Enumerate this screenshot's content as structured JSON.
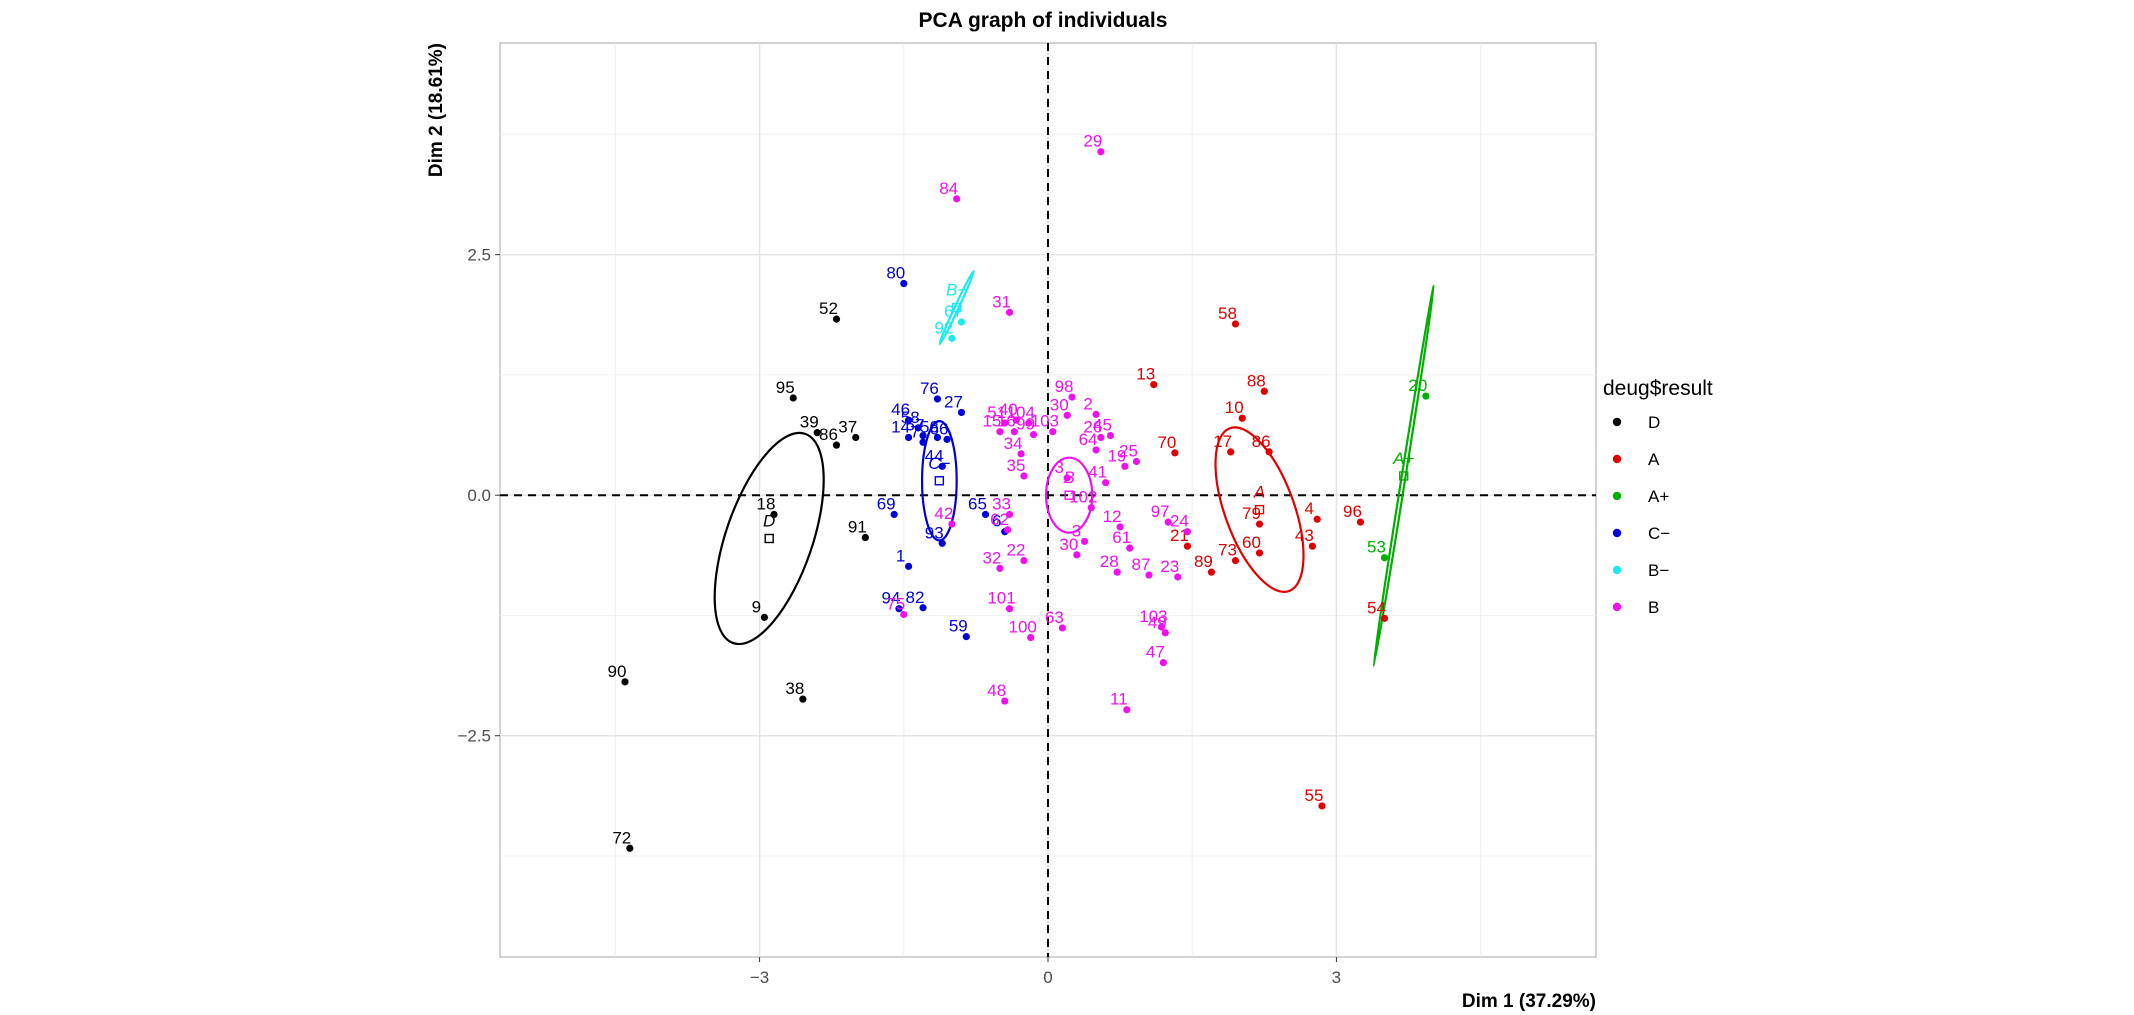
{
  "chart_data": {
    "type": "scatter",
    "title": "PCA graph of individuals",
    "xlabel": "Dim 1 (37.29%)",
    "ylabel": "Dim 2 (18.61%)",
    "xlim": [
      -5.7,
      5.7
    ],
    "ylim": [
      -4.8,
      4.7
    ],
    "xticks": [
      -3,
      0,
      3
    ],
    "yticks": [
      -2.5,
      0.0,
      2.5
    ],
    "xtick_labels": [
      "−3",
      "0",
      "3"
    ],
    "ytick_labels": [
      "−2.5",
      "0.0",
      "2.5"
    ],
    "grid": true,
    "reference_lines": "dashed at x=0 and y=0",
    "legend": {
      "title": "deug$result",
      "placement": "right",
      "entries": [
        {
          "label": "D",
          "color": "#000000"
        },
        {
          "label": "A",
          "color": "#e00000"
        },
        {
          "label": "A+",
          "color": "#00b000"
        },
        {
          "label": "C−",
          "color": "#0000d8"
        },
        {
          "label": "B−",
          "color": "#20e8f0"
        },
        {
          "label": "B",
          "color": "#ee11ee"
        }
      ]
    },
    "series": [
      {
        "name": "D",
        "color": "#000000",
        "points": [
          {
            "label": "52",
            "x": -2.2,
            "y": 1.83
          },
          {
            "label": "95",
            "x": -2.65,
            "y": 1.01
          },
          {
            "label": "39",
            "x": -2.4,
            "y": 0.65
          },
          {
            "label": "37",
            "x": -2.0,
            "y": 0.6
          },
          {
            "label": "86",
            "x": -2.2,
            "y": 0.52
          },
          {
            "label": "18",
            "x": -2.85,
            "y": -0.2
          },
          {
            "label": "91",
            "x": -1.9,
            "y": -0.44
          },
          {
            "label": "9",
            "x": -2.95,
            "y": -1.27
          },
          {
            "label": "90",
            "x": -4.4,
            "y": -1.94
          },
          {
            "label": "38",
            "x": -2.55,
            "y": -2.12
          },
          {
            "label": "72",
            "x": -4.35,
            "y": -3.67
          }
        ]
      },
      {
        "name": "A",
        "color": "#e00000",
        "points": [
          {
            "label": "58",
            "x": 1.95,
            "y": 1.78
          },
          {
            "label": "13",
            "x": 1.1,
            "y": 1.15
          },
          {
            "label": "88",
            "x": 2.25,
            "y": 1.08
          },
          {
            "label": "10",
            "x": 2.02,
            "y": 0.8
          },
          {
            "label": "70",
            "x": 1.32,
            "y": 0.44
          },
          {
            "label": "17",
            "x": 1.9,
            "y": 0.45
          },
          {
            "label": "86",
            "x": 2.3,
            "y": 0.45
          },
          {
            "label": "4",
            "x": 2.8,
            "y": -0.25
          },
          {
            "label": "96",
            "x": 3.25,
            "y": -0.28
          },
          {
            "label": "79",
            "x": 2.2,
            "y": -0.3
          },
          {
            "label": "43",
            "x": 2.75,
            "y": -0.53
          },
          {
            "label": "60",
            "x": 2.2,
            "y": -0.6
          },
          {
            "label": "21",
            "x": 1.45,
            "y": -0.53
          },
          {
            "label": "73",
            "x": 1.95,
            "y": -0.68
          },
          {
            "label": "89",
            "x": 1.7,
            "y": -0.8
          },
          {
            "label": "54",
            "x": 3.5,
            "y": -1.28
          },
          {
            "label": "55",
            "x": 2.85,
            "y": -3.23
          }
        ]
      },
      {
        "name": "A+",
        "color": "#00b000",
        "points": [
          {
            "label": "20",
            "x": 3.93,
            "y": 1.03
          },
          {
            "label": "53",
            "x": 3.5,
            "y": -0.65
          }
        ]
      },
      {
        "name": "C−",
        "color": "#0000d8",
        "points": [
          {
            "label": "80",
            "x": -1.5,
            "y": 2.2
          },
          {
            "label": "76",
            "x": -1.15,
            "y": 1.0
          },
          {
            "label": "27",
            "x": -0.9,
            "y": 0.86
          },
          {
            "label": "46",
            "x": -1.45,
            "y": 0.78
          },
          {
            "label": "58",
            "x": -1.35,
            "y": 0.7
          },
          {
            "label": "14",
            "x": -1.45,
            "y": 0.6
          },
          {
            "label": "57",
            "x": -1.3,
            "y": 0.62
          },
          {
            "label": "56",
            "x": -1.15,
            "y": 0.6
          },
          {
            "label": "66",
            "x": -1.05,
            "y": 0.58
          },
          {
            "label": "7",
            "x": -1.3,
            "y": 0.55
          },
          {
            "label": "44",
            "x": -1.1,
            "y": 0.3
          },
          {
            "label": "69",
            "x": -1.6,
            "y": -0.2
          },
          {
            "label": "65",
            "x": -0.65,
            "y": -0.2
          },
          {
            "label": "6",
            "x": -0.45,
            "y": -0.38
          },
          {
            "label": "93",
            "x": -1.1,
            "y": -0.5
          },
          {
            "label": "1",
            "x": -1.45,
            "y": -0.74
          },
          {
            "label": "94",
            "x": -1.55,
            "y": -1.18
          },
          {
            "label": "82",
            "x": -1.3,
            "y": -1.17
          },
          {
            "label": "59",
            "x": -0.85,
            "y": -1.47
          }
        ]
      },
      {
        "name": "B−",
        "color": "#20e8f0",
        "points": [
          {
            "label": "67",
            "x": -0.9,
            "y": 1.8
          },
          {
            "label": "92",
            "x": -1.0,
            "y": 1.63
          }
        ]
      },
      {
        "name": "B",
        "color": "#ee11ee",
        "points": [
          {
            "label": "29",
            "x": 0.55,
            "y": 3.57
          },
          {
            "label": "84",
            "x": -0.95,
            "y": 3.08
          },
          {
            "label": "31",
            "x": -0.4,
            "y": 1.9
          },
          {
            "label": "98",
            "x": 0.25,
            "y": 1.02
          },
          {
            "label": "30",
            "x": 0.2,
            "y": 0.83
          },
          {
            "label": "2",
            "x": 0.5,
            "y": 0.84
          },
          {
            "label": "51",
            "x": -0.45,
            "y": 0.75
          },
          {
            "label": "40",
            "x": -0.33,
            "y": 0.78
          },
          {
            "label": "104",
            "x": -0.2,
            "y": 0.75
          },
          {
            "label": "16",
            "x": -0.35,
            "y": 0.66
          },
          {
            "label": "15",
            "x": -0.5,
            "y": 0.66
          },
          {
            "label": "99",
            "x": -0.15,
            "y": 0.63
          },
          {
            "label": "103",
            "x": 0.05,
            "y": 0.66
          },
          {
            "label": "26",
            "x": 0.55,
            "y": 0.6
          },
          {
            "label": "45",
            "x": 0.65,
            "y": 0.62
          },
          {
            "label": "64",
            "x": 0.5,
            "y": 0.47
          },
          {
            "label": "34",
            "x": -0.28,
            "y": 0.43
          },
          {
            "label": "19",
            "x": 0.8,
            "y": 0.3
          },
          {
            "label": "25",
            "x": 0.92,
            "y": 0.35
          },
          {
            "label": "35",
            "x": -0.25,
            "y": 0.2
          },
          {
            "label": "3",
            "x": 0.2,
            "y": 0.18
          },
          {
            "label": "41",
            "x": 0.6,
            "y": 0.13
          },
          {
            "label": "102",
            "x": 0.45,
            "y": -0.13
          },
          {
            "label": "33",
            "x": -0.4,
            "y": -0.2
          },
          {
            "label": "97",
            "x": 1.25,
            "y": -0.28
          },
          {
            "label": "24",
            "x": 1.45,
            "y": -0.38
          },
          {
            "label": "12",
            "x": 0.75,
            "y": -0.33
          },
          {
            "label": "62",
            "x": -0.42,
            "y": -0.36
          },
          {
            "label": "42",
            "x": -1.0,
            "y": -0.3
          },
          {
            "label": "3",
            "x": 0.38,
            "y": -0.48
          },
          {
            "label": "61",
            "x": 0.85,
            "y": -0.55
          },
          {
            "label": "30",
            "x": 0.3,
            "y": -0.62
          },
          {
            "label": "32",
            "x": -0.5,
            "y": -0.76
          },
          {
            "label": "22",
            "x": -0.25,
            "y": -0.68
          },
          {
            "label": "28",
            "x": 0.72,
            "y": -0.8
          },
          {
            "label": "87",
            "x": 1.05,
            "y": -0.83
          },
          {
            "label": "23",
            "x": 1.35,
            "y": -0.85
          },
          {
            "label": "101",
            "x": -0.4,
            "y": -1.18
          },
          {
            "label": "75",
            "x": -1.5,
            "y": -1.24
          },
          {
            "label": "63",
            "x": 0.15,
            "y": -1.38
          },
          {
            "label": "100",
            "x": -0.18,
            "y": -1.48
          },
          {
            "label": "103",
            "x": 1.18,
            "y": -1.37
          },
          {
            "label": "49",
            "x": 1.22,
            "y": -1.43
          },
          {
            "label": "47",
            "x": 1.2,
            "y": -1.74
          },
          {
            "label": "48",
            "x": -0.45,
            "y": -2.14
          },
          {
            "label": "11",
            "x": 0.82,
            "y": -2.23
          }
        ]
      }
    ],
    "centroids": [
      {
        "label": "D",
        "x": -2.9,
        "y": -0.45,
        "color": "#000000"
      },
      {
        "label": "A",
        "x": 2.2,
        "y": -0.15,
        "color": "#e00000"
      },
      {
        "label": "A+",
        "x": 3.7,
        "y": 0.2,
        "color": "#00b000"
      },
      {
        "label": "C−",
        "x": -1.13,
        "y": 0.15,
        "color": "#0000d8"
      },
      {
        "label": "B−",
        "x": -0.95,
        "y": 1.95,
        "color": "#20e8f0"
      },
      {
        "label": "B",
        "x": 0.22,
        "y": 0.0,
        "color": "#ee11ee"
      }
    ],
    "ellipses": [
      {
        "group": "D",
        "cx": -2.9,
        "cy": -0.45,
        "rx": 0.45,
        "ry": 1.15,
        "angle": 19,
        "color": "#000000"
      },
      {
        "group": "A",
        "cx": 2.2,
        "cy": -0.15,
        "rx": 0.36,
        "ry": 0.9,
        "angle": -20,
        "color": "#e00000"
      },
      {
        "group": "A+",
        "cx": 3.7,
        "cy": 0.2,
        "rx": 0.02,
        "ry": 2.0,
        "angle": 9,
        "color": "#00b000"
      },
      {
        "group": "C−",
        "cx": -1.13,
        "cy": 0.15,
        "rx": 0.18,
        "ry": 0.62,
        "angle": 0,
        "color": "#0000d8"
      },
      {
        "group": "B−",
        "cx": -0.95,
        "cy": 1.95,
        "rx": 0.02,
        "ry": 0.42,
        "angle": 25,
        "color": "#20e8f0"
      },
      {
        "group": "B",
        "cx": 0.22,
        "cy": 0.0,
        "rx": 0.24,
        "ry": 0.39,
        "angle": 0,
        "color": "#ee11ee"
      }
    ]
  }
}
